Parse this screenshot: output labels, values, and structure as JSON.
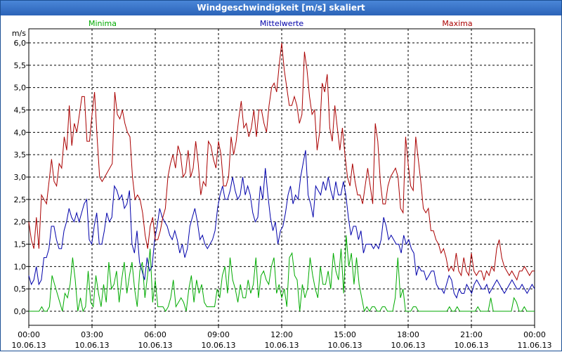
{
  "window": {
    "title": "Windgeschwindigkeit [m/s] skaliert"
  },
  "chart_data": {
    "type": "line",
    "title": "Windgeschwindigkeit [m/s] skaliert",
    "ylabel": "m/s",
    "ylim": [
      0,
      6.3
    ],
    "xlim": [
      0,
      1440
    ],
    "grid": true,
    "legend_position": "top",
    "y_ticks": [
      "0,0",
      "0,5",
      "1,0",
      "1,5",
      "2,0",
      "2,5",
      "3,0",
      "3,5",
      "4,0",
      "4,5",
      "5,0",
      "5,5",
      "6,0"
    ],
    "x_ticks": [
      {
        "time": "00:00",
        "date": "10.06.13"
      },
      {
        "time": "03:00",
        "date": "10.06.13"
      },
      {
        "time": "06:00",
        "date": "10.06.13"
      },
      {
        "time": "09:00",
        "date": "10.06.13"
      },
      {
        "time": "12:00",
        "date": "10.06.13"
      },
      {
        "time": "15:00",
        "date": "10.06.13"
      },
      {
        "time": "18:00",
        "date": "10.06.13"
      },
      {
        "time": "21:00",
        "date": "10.06.13"
      },
      {
        "time": "00:00",
        "date": "11.06.13"
      }
    ],
    "series": [
      {
        "name": "Minima",
        "color": "#00aa00",
        "values": [
          0.0,
          0.0,
          0.0,
          0.0,
          0.0,
          0.1,
          0.0,
          0.0,
          0.1,
          0.8,
          0.6,
          0.4,
          0.2,
          0.0,
          0.4,
          0.3,
          0.6,
          1.2,
          0.7,
          0.0,
          0.3,
          0.0,
          0.1,
          0.9,
          0.2,
          0.1,
          0.8,
          0.4,
          0.1,
          0.6,
          0.2,
          1.1,
          0.5,
          0.6,
          0.9,
          0.2,
          0.7,
          1.1,
          0.4,
          0.8,
          1.1,
          0.5,
          0.1,
          0.9,
          1.1,
          0.3,
          0.8,
          1.4,
          0.2,
          0.7,
          0.1,
          0.1,
          0.1,
          0.0,
          0.1,
          0.3,
          0.7,
          0.1,
          0.2,
          0.3,
          0.2,
          0.0,
          0.5,
          0.8,
          0.2,
          0.7,
          0.4,
          0.6,
          0.2,
          0.1,
          0.1,
          0.1,
          0.1,
          0.5,
          0.3,
          0.8,
          1.0,
          0.4,
          1.2,
          0.7,
          0.5,
          0.2,
          0.6,
          0.3,
          0.3,
          0.7,
          0.4,
          0.6,
          1.2,
          0.3,
          0.8,
          0.9,
          0.7,
          0.6,
          1.0,
          1.2,
          0.4,
          0.6,
          0.3,
          0.5,
          0.1,
          1.2,
          1.3,
          0.8,
          0.7,
          0.0,
          0.6,
          0.3,
          0.5,
          1.2,
          0.8,
          0.5,
          0.3,
          1.0,
          0.6,
          0.6,
          0.9,
          0.5,
          1.3,
          0.9,
          0.7,
          1.4,
          0.4,
          1.7,
          1.0,
          1.3,
          0.6,
          1.2,
          0.6,
          0.3,
          0.0,
          0.1,
          0.0,
          0.1,
          0.1,
          0.0,
          0.0,
          0.1,
          0.1,
          0.0,
          0.0,
          0.0,
          0.3,
          1.2,
          0.3,
          0.5,
          0.0,
          0.0,
          0.0,
          0.1,
          0.1,
          0.0,
          0.0,
          0.0,
          0.0,
          0.0,
          0.0,
          0.0,
          0.0,
          0.0,
          0.0,
          0.0,
          0.0,
          0.1,
          0.0,
          0.0,
          0.1,
          0.0,
          0.0,
          0.0,
          0.0,
          0.0,
          0.0,
          0.0,
          0.1,
          0.0,
          0.0,
          0.0,
          0.0,
          0.3,
          0.0,
          0.0,
          0.0,
          0.0,
          0.0,
          0.0,
          0.0,
          0.0,
          0.3,
          0.2,
          0.0,
          0.0,
          0.1,
          0.0,
          0.0,
          0.0,
          0.0
        ]
      },
      {
        "name": "Mittelwerte",
        "color": "#0000aa",
        "values": [
          0.8,
          0.6,
          0.7,
          1.0,
          0.6,
          0.7,
          1.2,
          1.2,
          1.4,
          1.9,
          1.9,
          1.6,
          1.4,
          1.4,
          1.8,
          2.0,
          2.3,
          2.1,
          2.0,
          2.2,
          2.0,
          2.2,
          2.4,
          2.5,
          1.6,
          1.5,
          1.9,
          2.2,
          1.5,
          1.5,
          1.8,
          2.2,
          2.0,
          2.1,
          2.8,
          2.7,
          2.5,
          2.6,
          2.3,
          2.4,
          2.7,
          1.5,
          1.3,
          1.8,
          1.1,
          0.9,
          0.7,
          1.2,
          0.9,
          1.0,
          1.6,
          1.9,
          2.3,
          2.1,
          2.0,
          1.9,
          1.7,
          1.6,
          1.8,
          1.6,
          1.3,
          1.5,
          1.2,
          1.4,
          1.9,
          2.1,
          2.3,
          2.0,
          1.6,
          1.7,
          1.5,
          1.4,
          1.5,
          1.6,
          1.8,
          2.3,
          2.6,
          2.8,
          2.5,
          2.5,
          2.7,
          3.0,
          2.7,
          2.5,
          2.6,
          3.0,
          2.6,
          2.8,
          2.6,
          2.2,
          2.0,
          2.1,
          2.8,
          2.5,
          3.2,
          2.6,
          2.1,
          1.8,
          2.0,
          1.5,
          1.8,
          1.9,
          2.2,
          2.6,
          2.8,
          2.4,
          2.6,
          2.5,
          3.0,
          3.3,
          3.6,
          2.6,
          2.4,
          2.1,
          2.8,
          2.7,
          2.6,
          2.9,
          2.7,
          3.0,
          2.7,
          2.5,
          2.9,
          2.6,
          2.6,
          2.9,
          2.6,
          2.1,
          1.7,
          1.9,
          1.9,
          1.6,
          1.8,
          1.3,
          1.5,
          1.5,
          1.5,
          1.4,
          1.5,
          1.4,
          1.6,
          2.1,
          1.9,
          1.6,
          1.7,
          1.6,
          1.5,
          1.5,
          1.3,
          1.7,
          1.5,
          1.6,
          1.4,
          1.3,
          0.8,
          1.0,
          0.9,
          0.9,
          0.7,
          0.8,
          0.9,
          0.9,
          0.6,
          0.5,
          0.5,
          0.4,
          0.6,
          0.8,
          0.7,
          0.4,
          0.3,
          0.5,
          0.4,
          0.4,
          0.6,
          0.5,
          0.4,
          0.6,
          0.7,
          0.6,
          0.5,
          0.5,
          0.6,
          0.4,
          0.5,
          0.6,
          0.7,
          0.6,
          0.5,
          0.4,
          0.5,
          0.6,
          0.7,
          0.6,
          0.5,
          0.5,
          0.6,
          0.5,
          0.4,
          0.5,
          0.6,
          0.5
        ]
      },
      {
        "name": "Maxima",
        "color": "#aa0000",
        "values": [
          2.0,
          1.6,
          1.4,
          2.1,
          1.4,
          2.6,
          2.5,
          2.4,
          2.9,
          3.4,
          2.9,
          2.8,
          3.3,
          3.2,
          3.9,
          3.6,
          4.6,
          3.7,
          4.2,
          4.0,
          4.4,
          4.8,
          4.8,
          3.8,
          3.8,
          4.4,
          4.9,
          3.9,
          3.0,
          2.9,
          3.0,
          3.1,
          3.2,
          3.3,
          4.9,
          4.4,
          4.3,
          4.5,
          4.2,
          4.0,
          3.9,
          3.0,
          2.5,
          2.6,
          2.5,
          2.2,
          1.7,
          1.4,
          1.9,
          2.1,
          1.6,
          1.6,
          1.8,
          2.1,
          2.3,
          3.0,
          3.3,
          3.5,
          3.2,
          3.7,
          3.5,
          3.0,
          3.1,
          3.6,
          3.0,
          3.2,
          3.8,
          3.3,
          2.6,
          2.9,
          2.8,
          3.8,
          3.7,
          3.4,
          3.2,
          3.8,
          3.5,
          2.8,
          2.8,
          3.0,
          3.9,
          3.5,
          3.8,
          4.3,
          4.7,
          4.1,
          4.2,
          3.9,
          4.1,
          4.5,
          3.9,
          4.5,
          4.5,
          4.2,
          4.0,
          4.6,
          5.0,
          5.1,
          4.9,
          5.5,
          6.0,
          5.4,
          5.0,
          4.6,
          4.6,
          4.8,
          4.6,
          4.2,
          4.4,
          5.8,
          5.4,
          4.8,
          4.4,
          4.5,
          3.6,
          4.0,
          5.1,
          4.9,
          5.3,
          4.1,
          3.8,
          4.6,
          4.1,
          3.6,
          4.1,
          3.5,
          3.0,
          2.8,
          3.3,
          2.9,
          2.6,
          2.6,
          2.4,
          2.8,
          3.2,
          2.8,
          2.4,
          4.2,
          3.8,
          2.9,
          2.4,
          2.4,
          2.8,
          3.0,
          3.1,
          3.2,
          3.0,
          2.3,
          2.2,
          3.9,
          3.3,
          2.8,
          2.7,
          3.9,
          3.4,
          2.9,
          2.3,
          2.2,
          2.3,
          1.8,
          1.8,
          1.6,
          1.5,
          1.3,
          1.4,
          1.2,
          0.9,
          1.0,
          0.9,
          1.3,
          0.9,
          0.8,
          1.2,
          0.9,
          0.8,
          1.3,
          0.9,
          0.8,
          0.9,
          0.9,
          0.7,
          0.9,
          0.8,
          1.0,
          0.9,
          1.4,
          1.6,
          1.2,
          1.0,
          0.9,
          0.8,
          0.9,
          0.8,
          0.7,
          0.9,
          0.9,
          1.0,
          0.9,
          0.8,
          0.9,
          0.9
        ]
      }
    ]
  }
}
